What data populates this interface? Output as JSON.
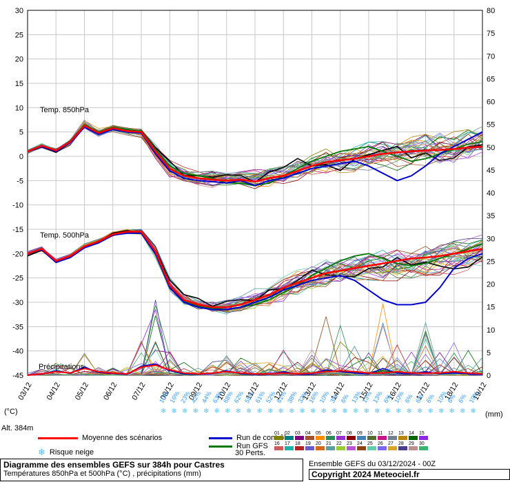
{
  "labels": {
    "left_unit": "(°C)",
    "right_unit": "(mm)",
    "altitude": "Alt. 384m"
  },
  "legend": {
    "mean": "Moyenne des scénarios",
    "control": "Run de contrôle",
    "gfs": "Run GFS",
    "perts": "30 Perts.",
    "snow": "Risque neige",
    "pert_labels": [
      "01",
      "02",
      "03",
      "04",
      "05",
      "06",
      "07",
      "08",
      "09",
      "10",
      "11",
      "12",
      "13",
      "14",
      "15",
      "16",
      "17",
      "18",
      "19",
      "20",
      "21",
      "22",
      "23",
      "24",
      "25",
      "26",
      "27",
      "28",
      "29",
      "30"
    ]
  },
  "footer": {
    "run_info": "Ensemble GEFS du 03/12/2024 - 00Z",
    "copyright": "Copyright 2024 Meteociel.fr"
  },
  "chart_data": {
    "type": "line",
    "title": "Diagramme des ensembles GEFS sur 384h pour Castres",
    "subtitle": "Températures 850hPa et 500hPa (°C) , précipitations (mm)",
    "x_hours_step": 12,
    "x_dates": [
      "03/12",
      "04/12",
      "05/12",
      "06/12",
      "07/12",
      "08/12",
      "09/12",
      "10/12",
      "11/12",
      "12/12",
      "13/12",
      "14/12",
      "15/12",
      "16/12",
      "17/12",
      "18/12",
      "19/12"
    ],
    "axes": {
      "left_ticks": [
        30,
        25,
        20,
        15,
        10,
        5,
        0,
        -5,
        -10,
        -15,
        -20,
        -25,
        -30,
        -35,
        -40,
        -45
      ],
      "right_ticks": [
        80,
        75,
        70,
        65,
        60,
        55,
        50,
        45,
        40,
        35,
        30,
        25,
        20,
        15,
        10,
        5,
        0
      ],
      "left_range": [
        30,
        -45
      ],
      "right_range": [
        80,
        0
      ],
      "grid": true
    },
    "panels": [
      {
        "id": "t850",
        "label": "Temp. 850hPa"
      },
      {
        "id": "t500",
        "label": "Temp. 500hPa"
      },
      {
        "id": "precip",
        "label": "Précipitations"
      }
    ],
    "series": {
      "t850": {
        "mean": [
          1.0,
          2.2,
          1.2,
          3.0,
          6.3,
          4.8,
          5.8,
          5.2,
          5.0,
          1.0,
          -2.5,
          -4.0,
          -4.5,
          -4.8,
          -5.0,
          -4.8,
          -5.2,
          -4.5,
          -4.0,
          -3.0,
          -2.0,
          -1.2,
          -0.8,
          -0.5,
          0.0,
          0.5,
          0.8,
          1.0,
          1.2,
          1.3,
          1.5,
          1.8,
          2.0
        ],
        "control": [
          1.0,
          2.0,
          1.0,
          2.8,
          6.0,
          4.5,
          5.5,
          5.0,
          4.8,
          0.5,
          -3.0,
          -4.5,
          -5.0,
          -5.2,
          -5.5,
          -5.0,
          -6.0,
          -5.0,
          -4.5,
          -3.5,
          -2.5,
          -2.0,
          -1.5,
          -1.0,
          -2.0,
          -3.5,
          -5.0,
          -4.0,
          -2.0,
          0.5,
          2.0,
          3.5,
          5.0
        ],
        "gfs": [
          1.0,
          2.1,
          1.1,
          3.2,
          6.5,
          5.0,
          6.0,
          5.5,
          5.2,
          1.5,
          -2.0,
          -3.5,
          -4.0,
          -4.5,
          -5.5,
          -5.5,
          -6.0,
          -5.5,
          -4.0,
          -2.5,
          -1.0,
          0.0,
          1.0,
          1.5,
          2.0,
          1.0,
          0.0,
          -1.0,
          -0.5,
          0.5,
          1.5,
          2.5,
          3.0
        ],
        "env_min": [
          0.3,
          1.2,
          0.2,
          1.5,
          4.5,
          3.0,
          4.0,
          3.5,
          3.0,
          -2.0,
          -6.0,
          -7.0,
          -7.5,
          -8.0,
          -8.0,
          -8.0,
          -8.5,
          -8.0,
          -8.0,
          -7.5,
          -7.5,
          -7.0,
          -7.0,
          -6.5,
          -6.5,
          -6.0,
          -6.5,
          -6.0,
          -6.0,
          -5.5,
          -5.0,
          -4.5,
          -4.0
        ],
        "env_max": [
          1.8,
          3.2,
          2.2,
          4.5,
          8.8,
          7.0,
          7.5,
          7.0,
          6.5,
          4.0,
          1.5,
          -0.5,
          -1.0,
          -1.0,
          -1.5,
          -1.0,
          -0.5,
          0.5,
          1.5,
          2.5,
          3.5,
          4.5,
          5.0,
          5.5,
          6.5,
          7.0,
          7.5,
          8.0,
          8.5,
          9.0,
          9.5,
          10.0,
          10.5
        ]
      },
      "t500": {
        "mean": [
          -20.0,
          -19.0,
          -21.5,
          -20.5,
          -18.5,
          -17.5,
          -16.0,
          -15.5,
          -15.5,
          -19.5,
          -26.5,
          -29.5,
          -30.5,
          -31.0,
          -31.0,
          -30.5,
          -29.5,
          -28.5,
          -27.0,
          -26.0,
          -25.0,
          -24.0,
          -23.5,
          -23.0,
          -22.5,
          -22.0,
          -21.5,
          -21.0,
          -20.8,
          -20.5,
          -20.0,
          -19.5,
          -19.0
        ],
        "control": [
          -20.0,
          -19.2,
          -21.8,
          -20.8,
          -18.8,
          -17.8,
          -16.2,
          -15.8,
          -15.8,
          -20.0,
          -27.0,
          -30.0,
          -31.0,
          -31.5,
          -31.5,
          -31.0,
          -30.0,
          -29.0,
          -27.5,
          -26.5,
          -25.5,
          -25.0,
          -24.5,
          -25.5,
          -27.5,
          -29.5,
          -30.5,
          -30.5,
          -30.0,
          -27.0,
          -23.0,
          -21.0,
          -20.0
        ],
        "gfs": [
          -20.0,
          -19.1,
          -21.6,
          -20.6,
          -18.6,
          -17.6,
          -16.1,
          -15.6,
          -15.6,
          -19.8,
          -26.8,
          -29.8,
          -30.8,
          -31.2,
          -31.5,
          -31.0,
          -30.5,
          -29.5,
          -28.0,
          -26.5,
          -24.5,
          -23.0,
          -21.5,
          -20.5,
          -20.0,
          -21.0,
          -22.0,
          -22.5,
          -22.0,
          -21.0,
          -20.0,
          -19.0,
          -18.0
        ],
        "env_min": [
          -20.8,
          -20.0,
          -22.5,
          -21.5,
          -19.5,
          -18.5,
          -17.0,
          -16.5,
          -17.0,
          -22.5,
          -29.5,
          -32.0,
          -33.0,
          -34.0,
          -34.5,
          -34.5,
          -34.0,
          -33.5,
          -32.5,
          -32.0,
          -31.5,
          -30.5,
          -30.0,
          -29.5,
          -29.0,
          -29.5,
          -30.0,
          -29.5,
          -29.0,
          -28.5,
          -28.0,
          -27.5,
          -27.0
        ],
        "env_max": [
          -19.2,
          -18.2,
          -20.5,
          -19.5,
          -17.5,
          -16.5,
          -15.0,
          -14.5,
          -14.2,
          -17.0,
          -23.5,
          -27.0,
          -28.0,
          -28.0,
          -27.5,
          -26.5,
          -25.0,
          -23.5,
          -22.0,
          -20.5,
          -19.0,
          -18.0,
          -17.5,
          -17.0,
          -16.5,
          -16.0,
          -15.5,
          -15.0,
          -14.5,
          -14.0,
          -13.8,
          -13.5,
          -13.0
        ]
      },
      "precip_mm": {
        "mean": [
          0.0,
          0.3,
          0.8,
          0.5,
          1.5,
          0.8,
          0.5,
          0.3,
          1.8,
          2.2,
          1.2,
          0.5,
          0.3,
          0.5,
          0.8,
          0.5,
          0.3,
          0.3,
          0.5,
          0.3,
          0.5,
          0.8,
          1.0,
          0.8,
          0.5,
          0.5,
          0.8,
          0.5,
          0.5,
          0.5,
          0.8,
          0.5,
          0.3
        ],
        "control": [
          0.0,
          0.2,
          1.0,
          0.4,
          1.8,
          0.6,
          0.4,
          0.2,
          2.0,
          2.5,
          1.0,
          0.3,
          0.2,
          0.4,
          1.0,
          0.3,
          0.2,
          0.2,
          0.8,
          0.2,
          0.3,
          1.2,
          0.8,
          0.5,
          0.3,
          1.5,
          0.5,
          0.3,
          0.8,
          0.3,
          0.5,
          0.3,
          0.2
        ],
        "gfs": [
          0.0,
          0.3,
          0.9,
          0.5,
          1.6,
          0.7,
          0.4,
          0.3,
          1.9,
          2.3,
          1.1,
          0.4,
          0.3,
          0.4,
          0.9,
          0.4,
          0.3,
          0.2,
          0.6,
          0.3,
          0.4,
          1.0,
          0.9,
          0.6,
          0.4,
          1.0,
          0.6,
          0.4,
          0.6,
          0.4,
          0.6,
          0.4,
          0.3
        ],
        "env_max": [
          0.5,
          1.5,
          3.0,
          2.0,
          5.0,
          3.0,
          2.0,
          2.0,
          8.0,
          18.0,
          6.0,
          3.0,
          2.0,
          3.0,
          6.0,
          4.0,
          3.0,
          3.0,
          8.0,
          4.0,
          6.0,
          14.0,
          12.0,
          8.0,
          6.0,
          16.0,
          10.0,
          6.0,
          12.0,
          6.0,
          8.0,
          6.0,
          4.0
        ]
      }
    },
    "snow_risk": {
      "percent_labels": [
        "10%",
        "16%",
        "23%",
        "42%",
        "44%",
        "63%",
        "68%",
        "62%",
        "55%",
        "61%",
        "52%",
        "61%",
        "38%",
        "32%",
        "16%",
        "10%",
        "3%",
        "6%",
        "13%",
        "13%",
        "13%",
        "6%",
        "10%",
        "6%",
        "6%",
        "6%",
        "10%",
        "6%",
        "6%",
        "10%"
      ],
      "text_color": "#2f9bff",
      "flake_color": "#5bc2ff"
    },
    "colors": {
      "mean": "#ff0000",
      "control": "#0000cc",
      "gfs": "#007700",
      "highlight_member": "#000000",
      "grid": "#c8c8c8",
      "frame": "#000000",
      "member_palette": [
        "#808000",
        "#008080",
        "#800080",
        "#a0522d",
        "#ff8c00",
        "#2e8b57",
        "#9932cc",
        "#8b0000",
        "#4682b4",
        "#556b2f",
        "#c71585",
        "#708090",
        "#b8860b",
        "#006400",
        "#8a2be2",
        "#cd5c5c",
        "#20b2aa",
        "#b22222",
        "#6a5acd",
        "#d2691e",
        "#5f9ea0",
        "#9acd32",
        "#ba55d3",
        "#8b4513",
        "#66cdaa",
        "#7b68ee",
        "#daa520",
        "#483d8b",
        "#bc8f8f",
        "#3cb371"
      ]
    }
  }
}
